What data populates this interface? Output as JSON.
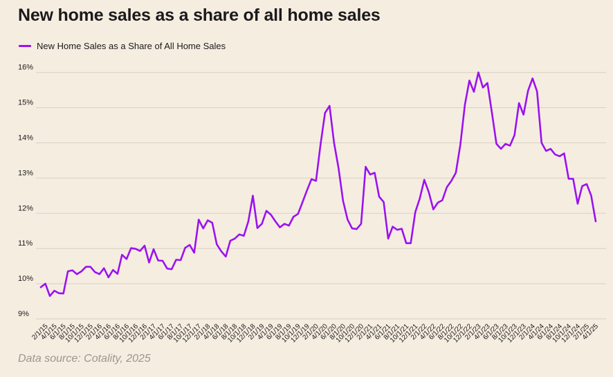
{
  "title": "New home sales as a share of all home sales",
  "source": "Data source: Cotality, 2025",
  "colors": {
    "background": "#f6ede1",
    "line": "#9b11f0",
    "grid": "#d8d0c4"
  },
  "chart_data": {
    "type": "line",
    "title": "New home sales as a share of all home sales",
    "xlabel": "",
    "ylabel": "",
    "ylim": [
      9,
      16.5
    ],
    "yticks": [
      9,
      10,
      11,
      12,
      13,
      14,
      15,
      16
    ],
    "ytick_labels": [
      "9%",
      "10%",
      "11%",
      "12%",
      "13%",
      "14%",
      "15%",
      "16%"
    ],
    "grid": true,
    "legend_position": "top-left",
    "xtick_labels": [
      "2/1/15",
      "4/1/15",
      "6/1/15",
      "8/1/15",
      "10/1/15",
      "12/1/15",
      "2/1/16",
      "4/1/16",
      "6/1/16",
      "8/1/16",
      "10/1/16",
      "12/1/16",
      "2/1/17",
      "4/1/17",
      "6/1/17",
      "8/1/17",
      "10/1/17",
      "12/1/17",
      "2/1/18",
      "4/1/18",
      "6/1/18",
      "8/1/18",
      "10/1/18",
      "12/1/18",
      "2/1/19",
      "4/1/19",
      "6/1/19",
      "8/1/19",
      "10/1/19",
      "12/1/19",
      "2/1/20",
      "4/1/20",
      "6/1/20",
      "8/1/20",
      "10/1/20",
      "12/1/20",
      "2/1/21",
      "4/1/21",
      "6/1/21",
      "8/1/21",
      "10/1/21",
      "12/1/21",
      "2/1/22",
      "4/1/22",
      "6/1/22",
      "8/1/22",
      "10/1/22",
      "12/1/22",
      "2/1/23",
      "4/1/23",
      "6/1/23",
      "8/1/23",
      "10/1/23",
      "12/1/23",
      "2/1/24",
      "4/1/24",
      "6/1/24",
      "8/1/24",
      "10/1/24",
      "12/1/24",
      "2/1/25",
      "4/1/25"
    ],
    "series": [
      {
        "name": "New Home Sales as a Share of All Home Sales",
        "x_start": "1/1/15",
        "x_end": "4/1/25",
        "frequency": "monthly",
        "values": [
          9.9,
          10.0,
          9.65,
          9.8,
          9.73,
          9.72,
          10.35,
          10.38,
          10.27,
          10.35,
          10.48,
          10.48,
          10.33,
          10.27,
          10.44,
          10.18,
          10.39,
          10.28,
          10.82,
          10.7,
          11.01,
          10.99,
          10.93,
          11.08,
          10.6,
          10.98,
          10.66,
          10.65,
          10.43,
          10.41,
          10.68,
          10.67,
          11.02,
          11.1,
          10.88,
          11.82,
          11.57,
          11.8,
          11.73,
          11.12,
          10.92,
          10.77,
          11.22,
          11.28,
          11.4,
          11.36,
          11.77,
          12.5,
          11.58,
          11.7,
          12.07,
          11.96,
          11.77,
          11.6,
          11.7,
          11.65,
          11.9,
          11.98,
          12.31,
          12.65,
          12.97,
          12.92,
          13.95,
          14.85,
          15.05,
          14.0,
          13.28,
          12.35,
          11.82,
          11.57,
          11.55,
          11.7,
          13.32,
          13.1,
          13.15,
          12.47,
          12.32,
          11.28,
          11.62,
          11.53,
          11.56,
          11.15,
          11.15,
          12.03,
          12.42,
          12.95,
          12.6,
          12.11,
          12.3,
          12.37,
          12.74,
          12.92,
          13.15,
          13.95,
          15.08,
          15.77,
          15.45,
          16.0,
          15.57,
          15.7,
          14.85,
          13.97,
          13.83,
          13.97,
          13.92,
          14.22,
          15.13,
          14.8,
          15.48,
          15.83,
          15.46,
          14.0,
          13.77,
          13.83,
          13.67,
          13.62,
          13.7,
          12.98,
          12.98,
          12.27,
          12.77,
          12.83,
          12.5,
          11.77
        ]
      }
    ]
  }
}
